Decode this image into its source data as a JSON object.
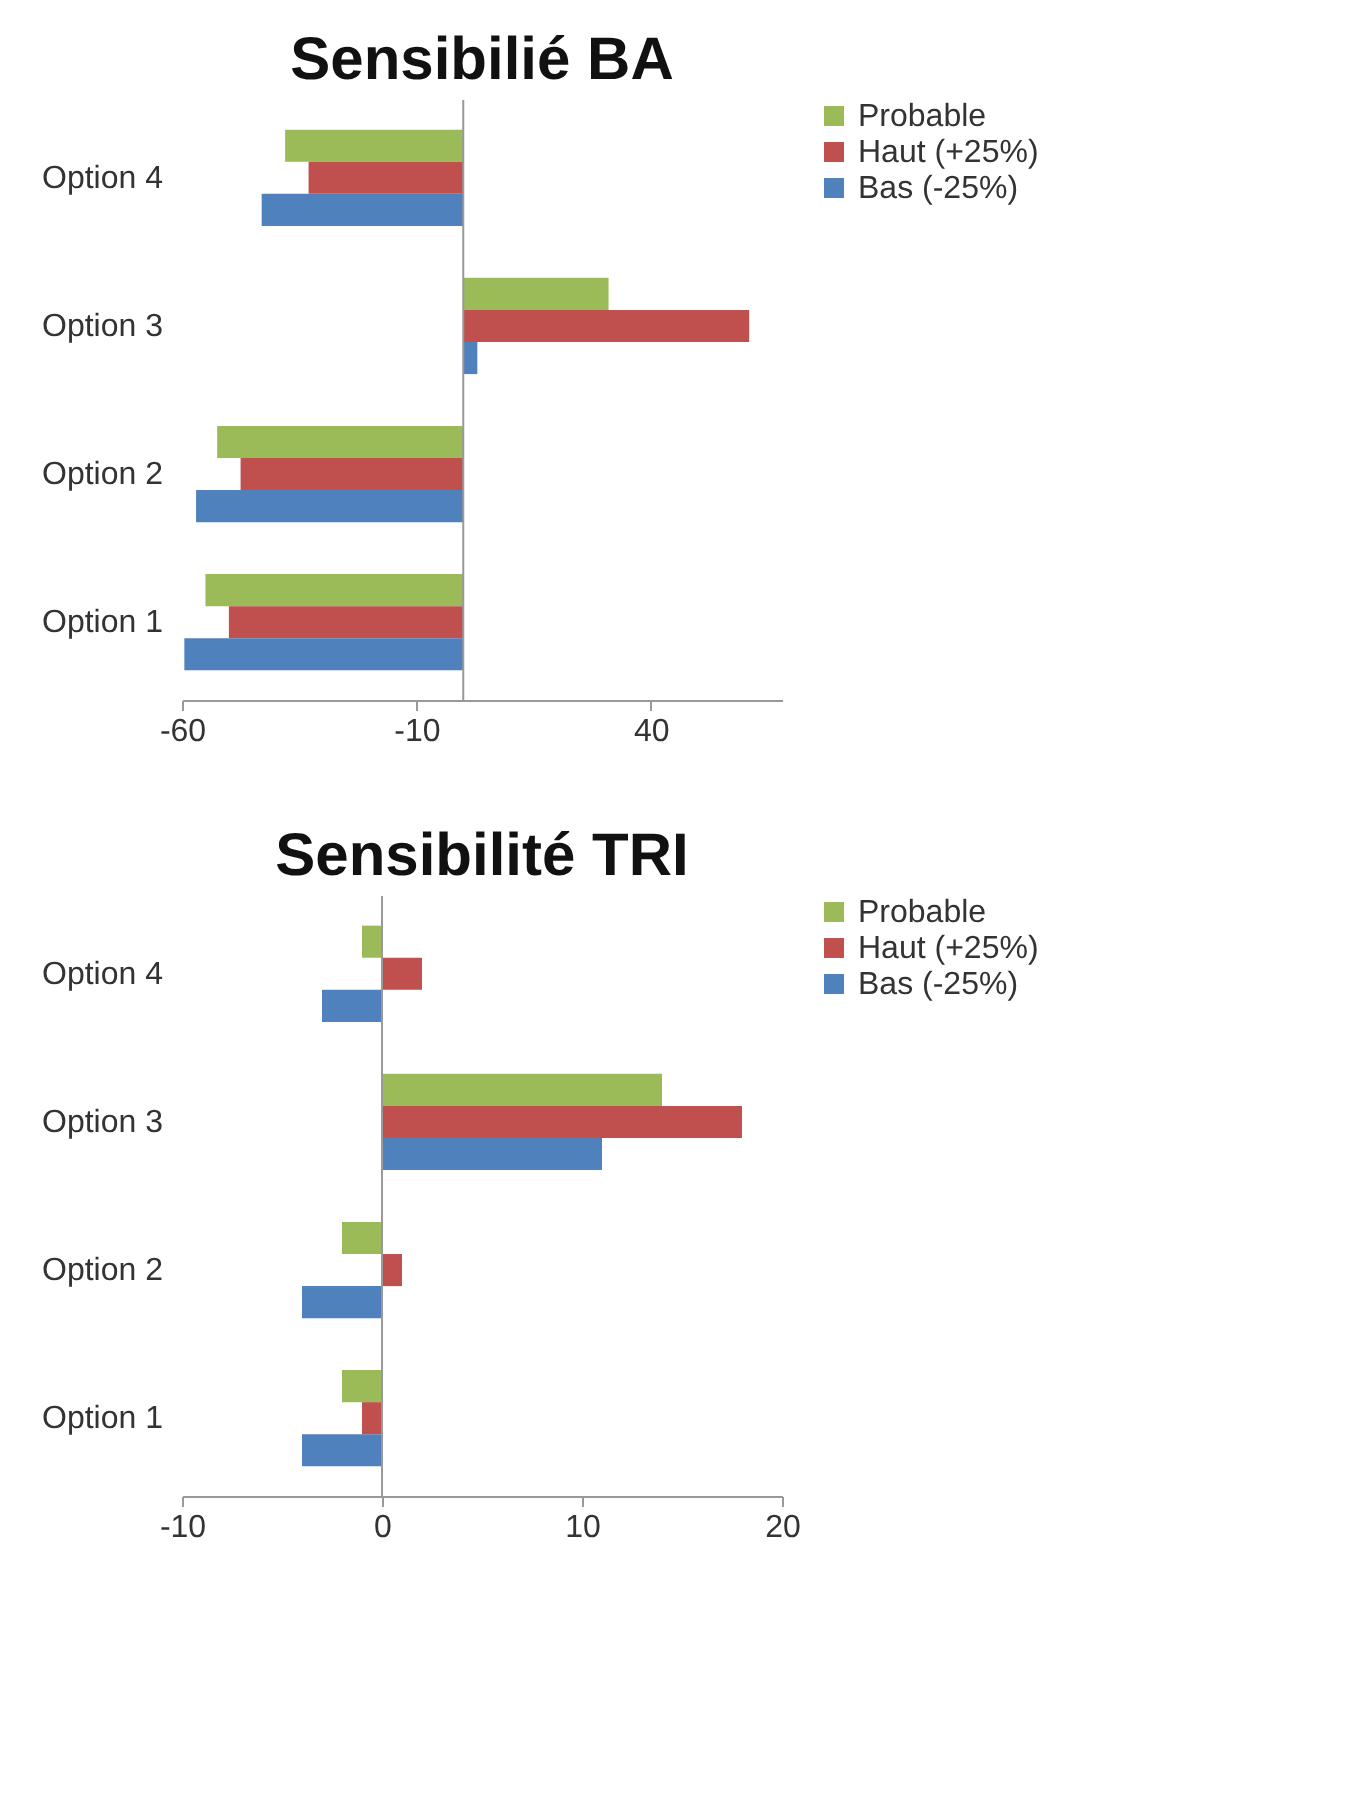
{
  "chart_data": [
    {
      "type": "bar",
      "orientation": "horizontal",
      "title": "Sensibilié BA",
      "categories": [
        "Option 4",
        "Option 3",
        "Option 2",
        "Option 1"
      ],
      "series": [
        {
          "name": "Probable",
          "color": "#9bbb59",
          "values": [
            -38,
            31,
            -52.5,
            -55
          ]
        },
        {
          "name": "Haut (+25%)",
          "color": "#c0504d",
          "values": [
            -33,
            61,
            -47.5,
            -50
          ]
        },
        {
          "name": "Bas (-25%)",
          "color": "#4f81bd",
          "values": [
            -43,
            3,
            -57,
            -59.5
          ]
        }
      ],
      "xlim": [
        -60,
        68
      ],
      "xticks": [
        -60,
        -10,
        40
      ],
      "grid": false,
      "legend": "right",
      "ref_lines": [
        {
          "axis": "x",
          "value": 0,
          "color": "#999999"
        }
      ]
    },
    {
      "type": "bar",
      "orientation": "horizontal",
      "title": "Sensibilité TRI",
      "categories": [
        "Option 4",
        "Option 3",
        "Option 2",
        "Option 1"
      ],
      "series": [
        {
          "name": "Probable",
          "color": "#9bbb59",
          "values": [
            -1,
            14,
            -2,
            -2
          ]
        },
        {
          "name": "Haut (+25%)",
          "color": "#c0504d",
          "values": [
            2,
            18,
            1,
            -1
          ]
        },
        {
          "name": "Bas (-25%)",
          "color": "#4f81bd",
          "values": [
            -3,
            11,
            -4,
            -4
          ]
        }
      ],
      "xlim": [
        -10,
        20
      ],
      "xticks": [
        -10,
        0,
        10,
        20
      ],
      "grid": false,
      "legend": "right",
      "ref_lines": [
        {
          "axis": "x",
          "value": 0,
          "color": "#999999"
        }
      ]
    }
  ]
}
